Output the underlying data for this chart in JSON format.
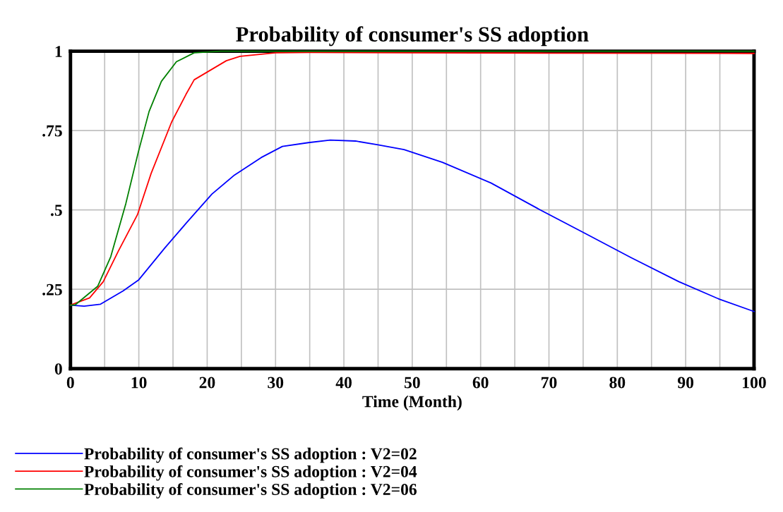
{
  "chart_data": {
    "type": "line",
    "title": "Probability of consumer's SS adoption",
    "xlabel": "Time (Month)",
    "xlim": [
      0,
      100
    ],
    "ylim": [
      0,
      1
    ],
    "xticks": [
      0,
      {
        "value": 5,
        "label": null
      },
      10,
      {
        "value": 15,
        "label": null
      },
      20,
      {
        "value": 25,
        "label": null
      },
      30,
      {
        "value": 35,
        "label": null
      },
      40,
      {
        "value": 45,
        "label": null
      },
      50,
      {
        "value": 55,
        "label": null
      },
      60,
      {
        "value": 65,
        "label": null
      },
      70,
      {
        "value": 75,
        "label": null
      },
      80,
      {
        "value": 85,
        "label": null
      },
      90,
      {
        "value": 95,
        "label": null
      },
      100
    ],
    "yticks": [
      0,
      {
        "value": 0.25,
        "label": ".25"
      },
      {
        "value": 0.5,
        "label": ".5"
      },
      {
        "value": 0.75,
        "label": ".75"
      },
      1
    ],
    "grid": true,
    "legend": "bottom",
    "line_style": "solid",
    "series": [
      {
        "name": "Probability of consumer's SS adoption : V2=02",
        "color": "#0000ff",
        "x": [
          0,
          2,
          4.4,
          7.7,
          10,
          13.8,
          17,
          20.7,
          24,
          27.9,
          31,
          34.8,
          38,
          41.7,
          45,
          48.8,
          54.4,
          61.5,
          68.3,
          75.3,
          82,
          89,
          94.9,
          100
        ],
        "values": [
          0.2,
          0.197,
          0.203,
          0.245,
          0.28,
          0.38,
          0.46,
          0.55,
          0.61,
          0.665,
          0.7,
          0.712,
          0.72,
          0.717,
          0.705,
          0.69,
          0.65,
          0.585,
          0.505,
          0.426,
          0.35,
          0.274,
          0.219,
          0.18
        ]
      },
      {
        "name": "Probability of consumer's SS adoption : V2=04",
        "color": "#ff0000",
        "x": [
          0,
          2.8,
          4.8,
          7,
          9.8,
          11.8,
          14.8,
          16.9,
          18.1,
          22.8,
          24.8,
          30,
          35,
          50,
          70,
          100
        ],
        "values": [
          0.2,
          0.223,
          0.274,
          0.37,
          0.485,
          0.615,
          0.777,
          0.864,
          0.91,
          0.97,
          0.984,
          0.995,
          0.996,
          0.995,
          0.994,
          0.993
        ]
      },
      {
        "name": "Probability of consumer's SS adoption : V2=06",
        "color": "#008000",
        "x": [
          0,
          0.7,
          4,
          5.9,
          8.1,
          9.9,
          11.5,
          13.3,
          15.5,
          18.1,
          22,
          30,
          60,
          100
        ],
        "values": [
          0.2,
          0.201,
          0.26,
          0.353,
          0.52,
          0.68,
          0.81,
          0.905,
          0.967,
          0.995,
          1,
          1,
          1,
          1
        ]
      }
    ]
  }
}
